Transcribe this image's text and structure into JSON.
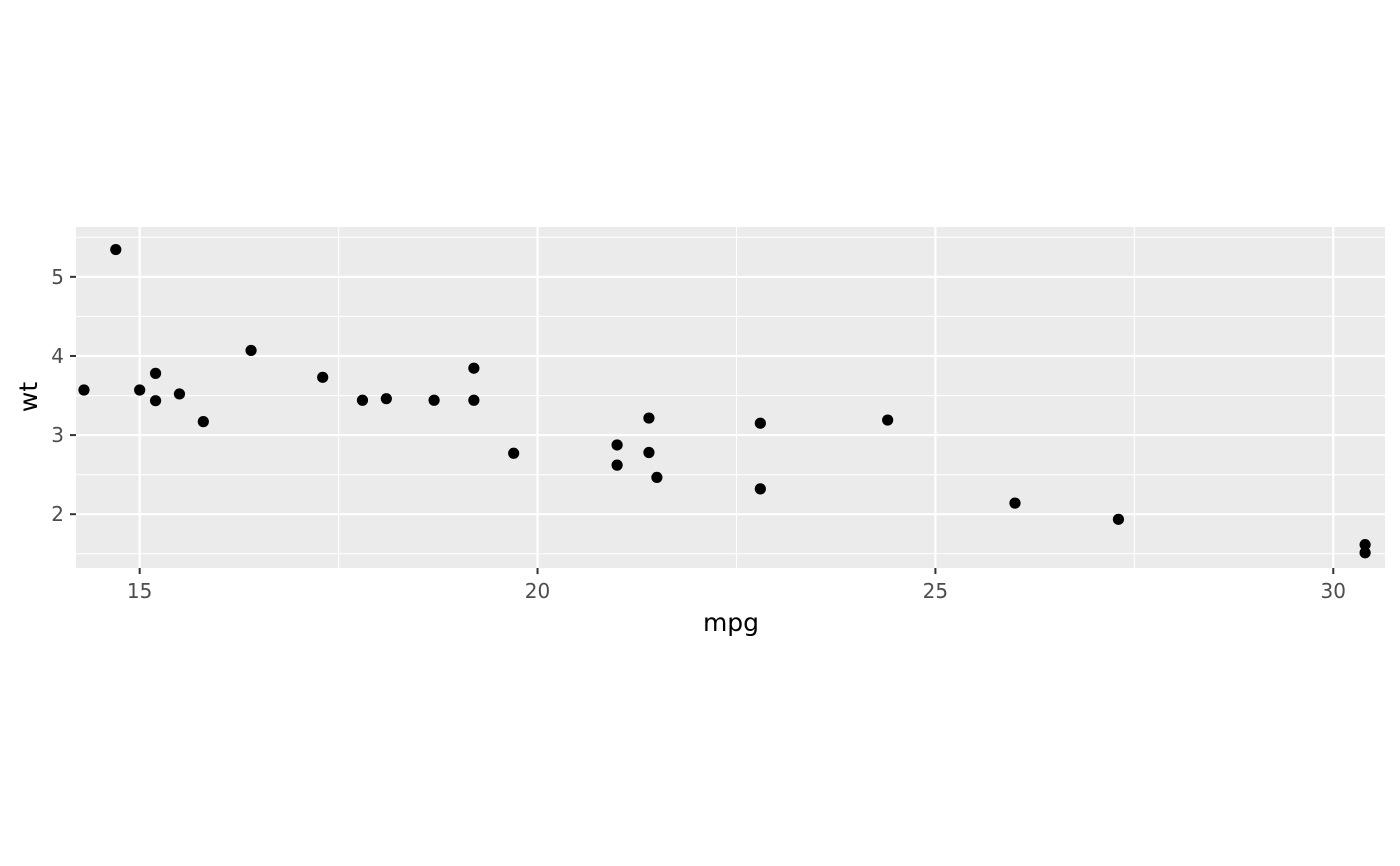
{
  "chart_data": {
    "type": "scatter",
    "xlabel": "mpg",
    "ylabel": "wt",
    "xlim": [
      14.2,
      30.65
    ],
    "ylim": [
      1.32,
      5.63
    ],
    "x_ticks": [
      15,
      20,
      25,
      30
    ],
    "y_ticks": [
      2,
      3,
      4,
      5
    ],
    "x_tick_labels": [
      "15",
      "20",
      "25",
      "30"
    ],
    "y_tick_labels": [
      "2",
      "3",
      "4",
      "5"
    ],
    "grid": true,
    "legend": "none",
    "points": [
      {
        "x": 21.0,
        "y": 2.62
      },
      {
        "x": 21.0,
        "y": 2.875
      },
      {
        "x": 22.8,
        "y": 2.32
      },
      {
        "x": 21.4,
        "y": 3.215
      },
      {
        "x": 18.7,
        "y": 3.44
      },
      {
        "x": 18.1,
        "y": 3.46
      },
      {
        "x": 14.3,
        "y": 3.57
      },
      {
        "x": 24.4,
        "y": 3.19
      },
      {
        "x": 22.8,
        "y": 3.15
      },
      {
        "x": 19.2,
        "y": 3.44
      },
      {
        "x": 17.8,
        "y": 3.44
      },
      {
        "x": 16.4,
        "y": 4.07
      },
      {
        "x": 17.3,
        "y": 3.73
      },
      {
        "x": 15.2,
        "y": 3.78
      },
      {
        "x": 14.7,
        "y": 5.345
      },
      {
        "x": 21.5,
        "y": 2.465
      },
      {
        "x": 15.5,
        "y": 3.52
      },
      {
        "x": 15.2,
        "y": 3.435
      },
      {
        "x": 19.2,
        "y": 3.845
      },
      {
        "x": 27.3,
        "y": 1.935
      },
      {
        "x": 26.0,
        "y": 2.14
      },
      {
        "x": 30.4,
        "y": 1.513
      },
      {
        "x": 15.8,
        "y": 3.17
      },
      {
        "x": 19.7,
        "y": 2.77
      },
      {
        "x": 15.0,
        "y": 3.57
      },
      {
        "x": 21.4,
        "y": 2.78
      },
      {
        "x": 30.4,
        "y": 1.615
      }
    ]
  },
  "colors": {
    "panel_background": "#ebebeb",
    "grid_major": "#ffffff",
    "grid_minor": "#ffffff",
    "point": "#000000",
    "tick": "#333333"
  }
}
